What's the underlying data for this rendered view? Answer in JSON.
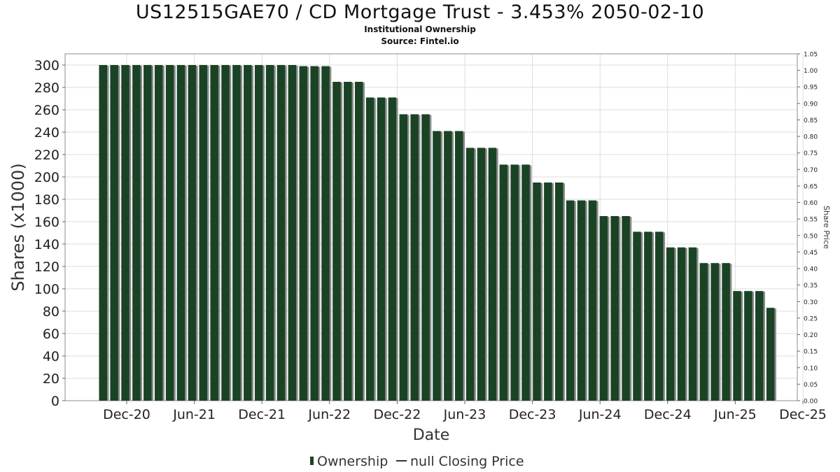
{
  "header": {
    "title": "US12515GAE70 / CD Mortgage Trust - 3.453% 2050-02-10",
    "subtitle": "Institutional Ownership",
    "source": "Source: Fintel.io"
  },
  "chart_data": {
    "type": "bar",
    "title": "US12515GAE70 / CD Mortgage Trust - 3.453% 2050-02-10",
    "subtitle": "Institutional Ownership",
    "xlabel": "Date",
    "ylabel": "Shares (x1000)",
    "y2label": "Share Price",
    "ylim": [
      0,
      310
    ],
    "y2lim": [
      0,
      1.05
    ],
    "yticks": [
      0,
      20,
      40,
      60,
      80,
      100,
      120,
      140,
      160,
      180,
      200,
      220,
      240,
      260,
      280,
      300
    ],
    "y2ticks": [
      "0.00",
      "0.05",
      "0.10",
      "0.15",
      "0.20",
      "0.25",
      "0.30",
      "0.35",
      "0.40",
      "0.45",
      "0.50",
      "0.55",
      "0.60",
      "0.65",
      "0.70",
      "0.75",
      "0.80",
      "0.85",
      "0.90",
      "0.95",
      "1.00",
      "1.05"
    ],
    "xticks": [
      "Dec-20",
      "Jun-21",
      "Dec-21",
      "Jun-22",
      "Dec-22",
      "Jun-23",
      "Dec-23",
      "Jun-24",
      "Dec-24",
      "Jun-25",
      "Dec-25"
    ],
    "grid": true,
    "legend_position": "bottom-center",
    "colors": {
      "bar": "#1a4325",
      "bar_shadow": "#8c8c8c",
      "grid": "#dddddd"
    },
    "series": [
      {
        "name": "Ownership",
        "values": [
          300,
          300,
          300,
          300,
          300,
          300,
          300,
          300,
          300,
          300,
          300,
          300,
          300,
          300,
          300,
          300,
          300,
          300,
          299,
          299,
          299,
          285,
          285,
          285,
          271,
          271,
          271,
          256,
          256,
          256,
          241,
          241,
          241,
          226,
          226,
          226,
          211,
          211,
          211,
          195,
          195,
          195,
          179,
          179,
          179,
          165,
          165,
          165,
          151,
          151,
          151,
          137,
          137,
          137,
          123,
          123,
          123,
          98,
          98,
          98,
          83
        ]
      }
    ],
    "legend": [
      {
        "label": "Ownership",
        "kind": "bar"
      },
      {
        "label": "null Closing Price",
        "kind": "line"
      }
    ]
  }
}
